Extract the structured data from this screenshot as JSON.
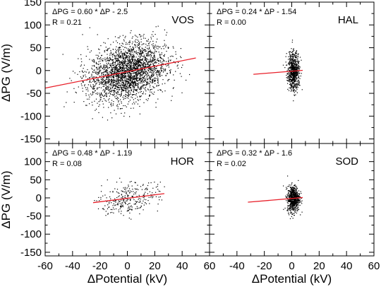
{
  "chart_data": {
    "type": "scatter",
    "xlabel": "ΔPotential (kV)",
    "ylabel": "ΔPG (V/m)",
    "xlim": [
      -60,
      60
    ],
    "ylim": [
      -160,
      150
    ],
    "x_ticks": [
      "-60",
      "-40",
      "-20",
      "0",
      "20",
      "40",
      "60"
    ],
    "y_ticks": [
      "150",
      "100",
      "50",
      "0",
      "-50",
      "-100",
      "-150"
    ],
    "line_color": "#e8202a",
    "point_color": "#000000",
    "panels": [
      {
        "station": "VOS",
        "equation": "ΔPG = 0.60 * ΔP - 2.5",
        "r": "R = 0.21",
        "slope": 0.6,
        "intercept": -2.5,
        "fit_x": [
          -60,
          50
        ],
        "cloud": {
          "cx": 0,
          "sx": 14,
          "sy": 32,
          "n": 2600,
          "xmin": -58,
          "xmax": 46
        }
      },
      {
        "station": "HAL",
        "equation": "ΔPG = 0.24 * ΔP - 1.54",
        "r": "R = 0.00",
        "slope": 0.24,
        "intercept": -1.54,
        "fit_x": [
          -28,
          8
        ],
        "cloud": {
          "cx": 1,
          "sx": 2.2,
          "sy": 20,
          "n": 700,
          "xmin": -28,
          "xmax": 8
        }
      },
      {
        "station": "HOR",
        "equation": "ΔPG = 0.48 * ΔP - 1.19",
        "r": "R = 0.08",
        "slope": 0.48,
        "intercept": -1.19,
        "fit_x": [
          -25,
          27
        ],
        "cloud": {
          "cx": 0,
          "sx": 11,
          "sy": 22,
          "n": 280,
          "xmin": -25,
          "xmax": 28
        }
      },
      {
        "station": "SOD",
        "equation": "ΔPG = 0.32 * ΔP - 1.6",
        "r": "R = 0.02",
        "slope": 0.32,
        "intercept": -1.6,
        "fit_x": [
          -32,
          8
        ],
        "cloud": {
          "cx": 1,
          "sx": 2.2,
          "sy": 18,
          "n": 700,
          "xmin": -32,
          "xmax": 8
        }
      }
    ]
  }
}
